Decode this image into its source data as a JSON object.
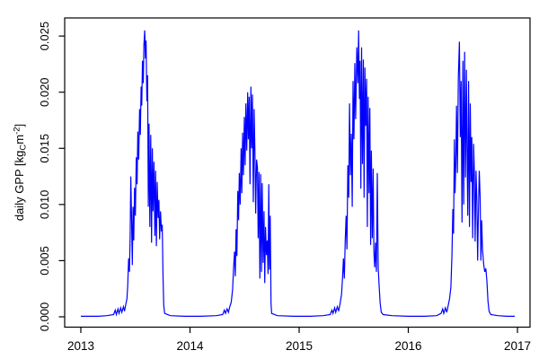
{
  "figure": {
    "background": "#ffffff",
    "axis_color": "#000000",
    "text_color": "#000000"
  },
  "chart_data": {
    "type": "line",
    "title": "",
    "xlabel": "",
    "ylabel": "daily GPP [kgC m-2]",
    "ylabel_parts": {
      "pre": "daily GPP [kg",
      "sub": "C",
      "mid": "m",
      "sup": "-2",
      "post": "]"
    },
    "grid": false,
    "legend": null,
    "x_ticks": [
      {
        "value": 2013,
        "label": "2013"
      },
      {
        "value": 2014,
        "label": "2014"
      },
      {
        "value": 2015,
        "label": "2015"
      },
      {
        "value": 2016,
        "label": "2016"
      },
      {
        "value": 2017,
        "label": "2017"
      }
    ],
    "y_ticks": [
      {
        "value": 0.0,
        "label": "0.000"
      },
      {
        "value": 0.005,
        "label": "0.005"
      },
      {
        "value": 0.01,
        "label": "0.010"
      },
      {
        "value": 0.015,
        "label": "0.015"
      },
      {
        "value": 0.02,
        "label": "0.020"
      },
      {
        "value": 0.025,
        "label": "0.025"
      }
    ],
    "xlim": [
      2012.852,
      2017.115
    ],
    "ylim": [
      -0.00092,
      0.02661
    ],
    "series": [
      {
        "name": "daily GPP",
        "color": "#0000ff",
        "points": [
          [
            2013.0,
            5e-05
          ],
          [
            2013.08,
            5e-05
          ],
          [
            2013.16,
            5e-05
          ],
          [
            2013.24,
            0.0001
          ],
          [
            2013.3,
            0.0002
          ],
          [
            2013.315,
            0.0006
          ],
          [
            2013.325,
            0.0002
          ],
          [
            2013.34,
            0.0007
          ],
          [
            2013.35,
            0.0003
          ],
          [
            2013.365,
            0.0008
          ],
          [
            2013.375,
            0.0004
          ],
          [
            2013.39,
            0.0009
          ],
          [
            2013.4,
            0.0005
          ],
          [
            2013.412,
            0.0011
          ],
          [
            2013.422,
            0.0016
          ],
          [
            2013.43,
            0.0028
          ],
          [
            2013.438,
            0.0052
          ],
          [
            2013.445,
            0.004
          ],
          [
            2013.452,
            0.0072
          ],
          [
            2013.458,
            0.0125
          ],
          [
            2013.465,
            0.0085
          ],
          [
            2013.472,
            0.0046
          ],
          [
            2013.478,
            0.0098
          ],
          [
            2013.485,
            0.0068
          ],
          [
            2013.492,
            0.0115
          ],
          [
            2013.5,
            0.009
          ],
          [
            2013.508,
            0.0142
          ],
          [
            2013.515,
            0.0118
          ],
          [
            2013.522,
            0.0165
          ],
          [
            2013.53,
            0.014
          ],
          [
            2013.538,
            0.0185
          ],
          [
            2013.545,
            0.0162
          ],
          [
            2013.552,
            0.0205
          ],
          [
            2013.558,
            0.0188
          ],
          [
            2013.565,
            0.0228
          ],
          [
            2013.572,
            0.0208
          ],
          [
            2013.578,
            0.0242
          ],
          [
            2013.585,
            0.0255
          ],
          [
            2013.592,
            0.023
          ],
          [
            2013.598,
            0.0246
          ],
          [
            2013.605,
            0.0192
          ],
          [
            2013.612,
            0.0215
          ],
          [
            2013.618,
            0.0098
          ],
          [
            2013.625,
            0.0172
          ],
          [
            2013.632,
            0.008
          ],
          [
            2013.64,
            0.0162
          ],
          [
            2013.648,
            0.0066
          ],
          [
            2013.655,
            0.015
          ],
          [
            2013.662,
            0.0094
          ],
          [
            2013.67,
            0.0138
          ],
          [
            2013.678,
            0.0072
          ],
          [
            2013.685,
            0.013
          ],
          [
            2013.692,
            0.0063
          ],
          [
            2013.7,
            0.012
          ],
          [
            2013.708,
            0.0088
          ],
          [
            2013.715,
            0.0104
          ],
          [
            2013.722,
            0.0069
          ],
          [
            2013.73,
            0.0094
          ],
          [
            2013.738,
            0.0076
          ],
          [
            2013.746,
            0.0082
          ],
          [
            2013.753,
            0.0035
          ],
          [
            2013.76,
            0.001
          ],
          [
            2013.768,
            0.0003
          ],
          [
            2013.82,
            0.0001
          ],
          [
            2013.95,
            5e-05
          ],
          [
            2014.1,
            5e-05
          ],
          [
            2014.24,
            0.0001
          ],
          [
            2014.3,
            0.0002
          ],
          [
            2014.315,
            0.0006
          ],
          [
            2014.325,
            0.0003
          ],
          [
            2014.34,
            0.0007
          ],
          [
            2014.352,
            0.0004
          ],
          [
            2014.365,
            0.0009
          ],
          [
            2014.378,
            0.0013
          ],
          [
            2014.39,
            0.0024
          ],
          [
            2014.4,
            0.0045
          ],
          [
            2014.408,
            0.0058
          ],
          [
            2014.415,
            0.0036
          ],
          [
            2014.422,
            0.0078
          ],
          [
            2014.43,
            0.0054
          ],
          [
            2014.438,
            0.0112
          ],
          [
            2014.445,
            0.0086
          ],
          [
            2014.452,
            0.0128
          ],
          [
            2014.46,
            0.01
          ],
          [
            2014.468,
            0.015
          ],
          [
            2014.475,
            0.011
          ],
          [
            2014.482,
            0.0164
          ],
          [
            2014.49,
            0.0126
          ],
          [
            2014.498,
            0.0178
          ],
          [
            2014.505,
            0.0135
          ],
          [
            2014.512,
            0.019
          ],
          [
            2014.52,
            0.0148
          ],
          [
            2014.528,
            0.02
          ],
          [
            2014.535,
            0.0158
          ],
          [
            2014.542,
            0.0196
          ],
          [
            2014.55,
            0.0118
          ],
          [
            2014.558,
            0.0205
          ],
          [
            2014.565,
            0.015
          ],
          [
            2014.572,
            0.0198
          ],
          [
            2014.58,
            0.0102
          ],
          [
            2014.588,
            0.0185
          ],
          [
            2014.595,
            0.0146
          ],
          [
            2014.602,
            0.0092
          ],
          [
            2014.61,
            0.014
          ],
          [
            2014.618,
            0.0133
          ],
          [
            2014.625,
            0.007
          ],
          [
            2014.632,
            0.0129
          ],
          [
            2014.64,
            0.0034
          ],
          [
            2014.648,
            0.0127
          ],
          [
            2014.655,
            0.004
          ],
          [
            2014.662,
            0.0119
          ],
          [
            2014.67,
            0.0048
          ],
          [
            2014.678,
            0.0094
          ],
          [
            2014.685,
            0.003
          ],
          [
            2014.692,
            0.008
          ],
          [
            2014.7,
            0.0055
          ],
          [
            2014.708,
            0.0068
          ],
          [
            2014.715,
            0.0038
          ],
          [
            2014.722,
            0.0118
          ],
          [
            2014.728,
            0.0042
          ],
          [
            2014.735,
            0.009
          ],
          [
            2014.742,
            0.0012
          ],
          [
            2014.748,
            0.0003
          ],
          [
            2014.8,
            0.0001
          ],
          [
            2014.95,
            5e-05
          ],
          [
            2015.1,
            5e-05
          ],
          [
            2015.22,
            0.0001
          ],
          [
            2015.285,
            0.0002
          ],
          [
            2015.3,
            0.0006
          ],
          [
            2015.31,
            0.0003
          ],
          [
            2015.325,
            0.0008
          ],
          [
            2015.335,
            0.0004
          ],
          [
            2015.35,
            0.0009
          ],
          [
            2015.362,
            0.0005
          ],
          [
            2015.375,
            0.0012
          ],
          [
            2015.388,
            0.002
          ],
          [
            2015.398,
            0.0036
          ],
          [
            2015.406,
            0.0052
          ],
          [
            2015.414,
            0.0034
          ],
          [
            2015.422,
            0.0068
          ],
          [
            2015.43,
            0.009
          ],
          [
            2015.438,
            0.006
          ],
          [
            2015.446,
            0.0135
          ],
          [
            2015.454,
            0.0106
          ],
          [
            2015.462,
            0.019
          ],
          [
            2015.47,
            0.0126
          ],
          [
            2015.478,
            0.0163
          ],
          [
            2015.486,
            0.0098
          ],
          [
            2015.494,
            0.021
          ],
          [
            2015.502,
            0.0158
          ],
          [
            2015.51,
            0.0226
          ],
          [
            2015.518,
            0.0176
          ],
          [
            2015.528,
            0.024
          ],
          [
            2015.538,
            0.0208
          ],
          [
            2015.545,
            0.0255
          ],
          [
            2015.552,
            0.0194
          ],
          [
            2015.558,
            0.0228
          ],
          [
            2015.565,
            0.0114
          ],
          [
            2015.572,
            0.024
          ],
          [
            2015.58,
            0.0136
          ],
          [
            2015.588,
            0.0229
          ],
          [
            2015.595,
            0.0106
          ],
          [
            2015.602,
            0.0222
          ],
          [
            2015.61,
            0.017
          ],
          [
            2015.618,
            0.0212
          ],
          [
            2015.625,
            0.008
          ],
          [
            2015.632,
            0.0196
          ],
          [
            2015.64,
            0.011
          ],
          [
            2015.648,
            0.0186
          ],
          [
            2015.655,
            0.0064
          ],
          [
            2015.662,
            0.0148
          ],
          [
            2015.67,
            0.007
          ],
          [
            2015.678,
            0.0132
          ],
          [
            2015.685,
            0.0058
          ],
          [
            2015.692,
            0.0044
          ],
          [
            2015.7,
            0.0066
          ],
          [
            2015.708,
            0.004
          ],
          [
            2015.716,
            0.0128
          ],
          [
            2015.724,
            0.0044
          ],
          [
            2015.732,
            0.0028
          ],
          [
            2015.742,
            0.0012
          ],
          [
            2015.752,
            0.0004
          ],
          [
            2015.77,
            0.0002
          ],
          [
            2015.85,
            0.0001
          ],
          [
            2016.0,
            5e-05
          ],
          [
            2016.15,
            5e-05
          ],
          [
            2016.26,
            0.0001
          ],
          [
            2016.3,
            0.0003
          ],
          [
            2016.315,
            0.0007
          ],
          [
            2016.325,
            0.0003
          ],
          [
            2016.34,
            0.0008
          ],
          [
            2016.352,
            0.0004
          ],
          [
            2016.365,
            0.001
          ],
          [
            2016.378,
            0.0016
          ],
          [
            2016.39,
            0.0026
          ],
          [
            2016.4,
            0.0055
          ],
          [
            2016.408,
            0.0096
          ],
          [
            2016.415,
            0.0074
          ],
          [
            2016.422,
            0.0158
          ],
          [
            2016.428,
            0.011
          ],
          [
            2016.435,
            0.0136
          ],
          [
            2016.442,
            0.0188
          ],
          [
            2016.45,
            0.0128
          ],
          [
            2016.458,
            0.0213
          ],
          [
            2016.468,
            0.0245
          ],
          [
            2016.476,
            0.016
          ],
          [
            2016.484,
            0.021
          ],
          [
            2016.492,
            0.0084
          ],
          [
            2016.5,
            0.0228
          ],
          [
            2016.508,
            0.01
          ],
          [
            2016.516,
            0.0236
          ],
          [
            2016.524,
            0.0124
          ],
          [
            2016.532,
            0.022
          ],
          [
            2016.538,
            0.015
          ],
          [
            2016.545,
            0.009
          ],
          [
            2016.552,
            0.021
          ],
          [
            2016.56,
            0.008
          ],
          [
            2016.568,
            0.019
          ],
          [
            2016.575,
            0.012
          ],
          [
            2016.582,
            0.016
          ],
          [
            2016.59,
            0.007
          ],
          [
            2016.598,
            0.0154
          ],
          [
            2016.605,
            0.013
          ],
          [
            2016.612,
            0.0067
          ],
          [
            2016.62,
            0.013
          ],
          [
            2016.628,
            0.0104
          ],
          [
            2016.635,
            0.005
          ],
          [
            2016.642,
            0.009
          ],
          [
            2016.65,
            0.013
          ],
          [
            2016.658,
            0.0106
          ],
          [
            2016.665,
            0.005
          ],
          [
            2016.672,
            0.0086
          ],
          [
            2016.68,
            0.006
          ],
          [
            2016.69,
            0.0047
          ],
          [
            2016.7,
            0.004
          ],
          [
            2016.71,
            0.0043
          ],
          [
            2016.72,
            0.0032
          ],
          [
            2016.73,
            0.0014
          ],
          [
            2016.74,
            0.0005
          ],
          [
            2016.755,
            0.0002
          ],
          [
            2016.82,
            0.0001
          ],
          [
            2016.9,
            5e-05
          ],
          [
            2016.975,
            5e-05
          ]
        ]
      }
    ]
  }
}
